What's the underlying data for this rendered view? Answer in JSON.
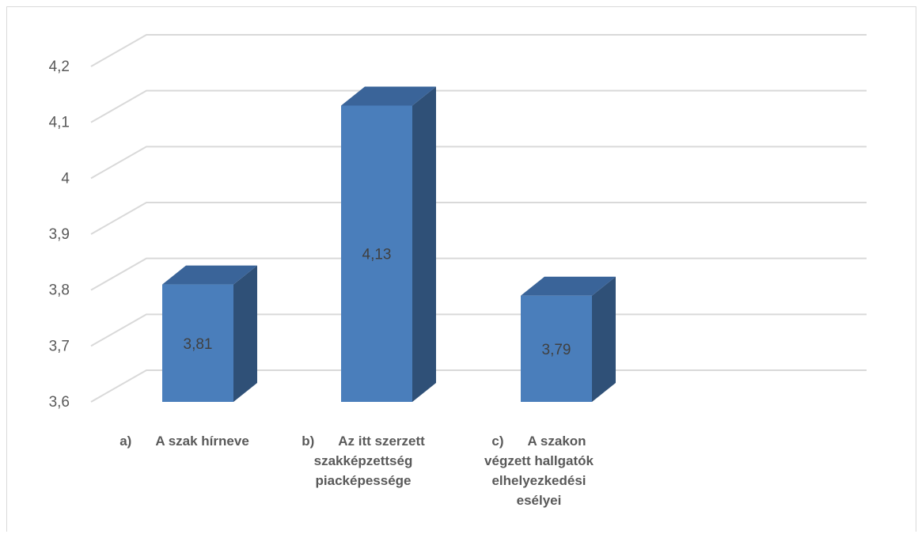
{
  "chart_data": {
    "type": "bar",
    "style": "3d-column",
    "categories": [
      {
        "letter": "a)",
        "lines": [
          "A szak hírneve"
        ]
      },
      {
        "letter": "b)",
        "lines": [
          "Az itt szerzett",
          "szakképzettség",
          "piacképessége"
        ]
      },
      {
        "letter": "c)",
        "lines": [
          "A szakon",
          "végzett hallgatók",
          "elhelyezkedési",
          "esélyei"
        ]
      }
    ],
    "values": [
      3.81,
      4.13,
      3.79
    ],
    "value_labels": [
      "3,81",
      "4,13",
      "3,79"
    ],
    "ylim": [
      3.6,
      4.2
    ],
    "yticks": [
      3.6,
      3.7,
      3.8,
      3.9,
      4.0,
      4.1,
      4.2
    ],
    "ytick_labels": [
      "3,6",
      "3,7",
      "3,8",
      "3,9",
      "4",
      "4,1",
      "4,2"
    ],
    "grid": true,
    "colors": {
      "front": "#4a7ebb",
      "side": "#2f5077",
      "top": "#3a6499",
      "grid": "#d9d9d9"
    }
  }
}
